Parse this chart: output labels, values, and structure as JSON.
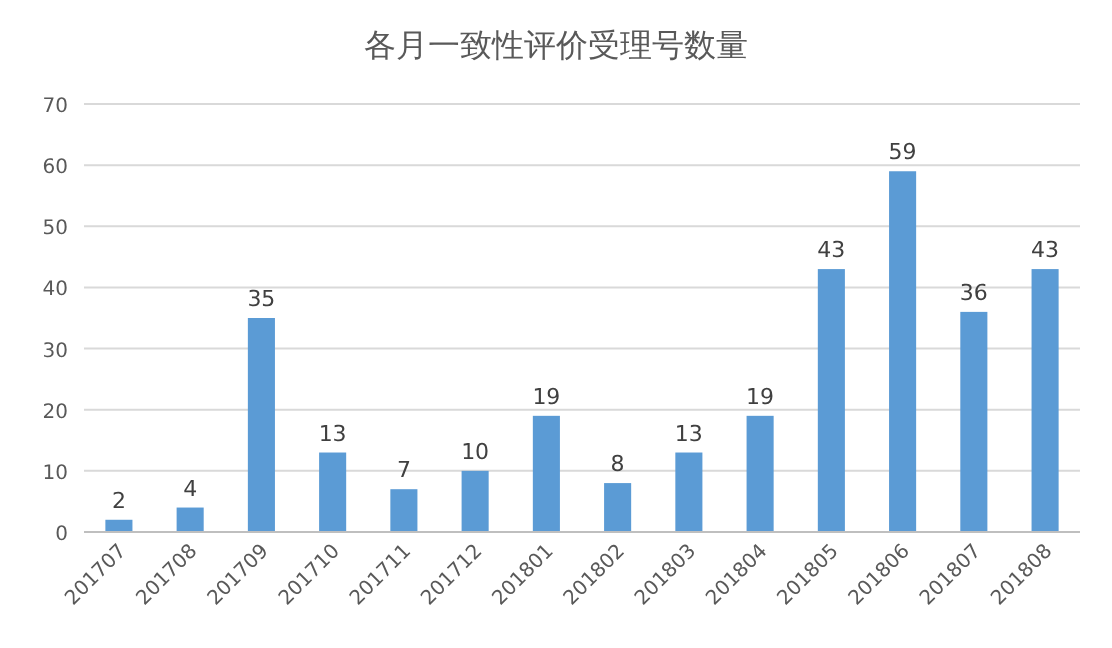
{
  "chart_data": {
    "type": "bar",
    "title": "各月一致性评价受理号数量",
    "categories": [
      "201707",
      "201708",
      "201709",
      "201710",
      "201711",
      "201712",
      "201801",
      "201802",
      "201803",
      "201804",
      "201805",
      "201806",
      "201807",
      "201808"
    ],
    "values": [
      2,
      4,
      35,
      13,
      7,
      10,
      19,
      8,
      13,
      19,
      43,
      59,
      36,
      43
    ],
    "color": "#5b9bd5",
    "ylim": [
      0,
      70
    ],
    "yticks": [
      0,
      10,
      20,
      30,
      40,
      50,
      60,
      70
    ],
    "grid": "y",
    "data_labels": true
  }
}
